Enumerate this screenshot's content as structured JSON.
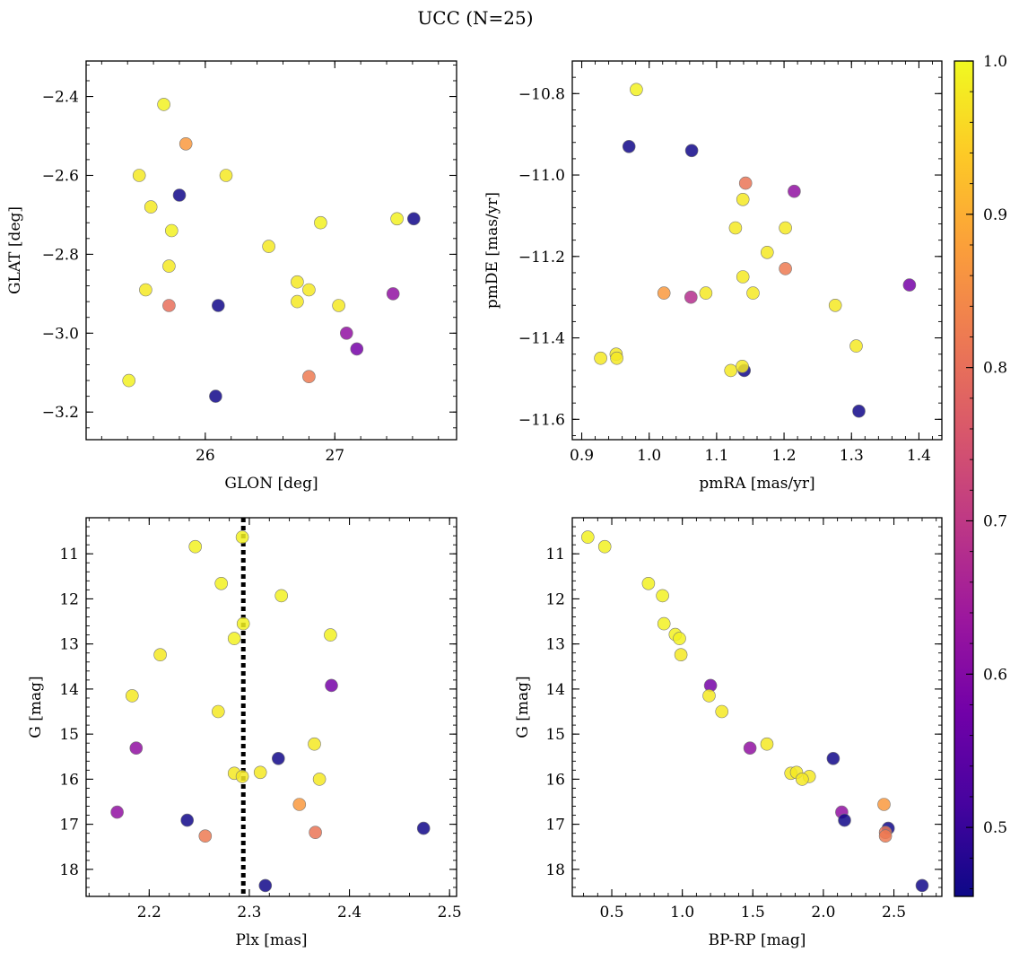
{
  "figure": {
    "title": "UCC (N=25)"
  },
  "colorbar": {
    "min": 0.455,
    "max": 1.0,
    "ticks": [
      0.5,
      0.6,
      0.7,
      0.8,
      0.9,
      1.0
    ],
    "tick_labels": [
      "0.5",
      "0.6",
      "0.7",
      "0.8",
      "0.9",
      "1.0"
    ],
    "colormap": "plasma",
    "stops": [
      "#0d0887",
      "#46039f",
      "#7201a8",
      "#9c179e",
      "#bd3786",
      "#d8576b",
      "#ed7953",
      "#fb9f3a",
      "#fdca26",
      "#f0f921"
    ]
  },
  "chart_data": [
    {
      "type": "scatter",
      "panel": "top-left",
      "xlabel": "GLON [deg]",
      "ylabel": "GLAT [deg]",
      "xlim": [
        25.08,
        27.94
      ],
      "ylim": [
        -3.27,
        -2.31
      ],
      "y_inverted": false,
      "xticks": [
        26,
        27
      ],
      "xtick_labels": [
        "26",
        "27"
      ],
      "yticks": [
        -3.2,
        -3.0,
        -2.8,
        -2.6,
        -2.4
      ],
      "ytick_labels": [
        "−3.2",
        "−3.0",
        "−2.8",
        "−2.6",
        "−2.4"
      ],
      "vline": null,
      "points": [
        {
          "x": 25.68,
          "y": -2.42,
          "c": 0.99
        },
        {
          "x": 25.85,
          "y": -2.52,
          "c": 0.87
        },
        {
          "x": 25.49,
          "y": -2.6,
          "c": 0.98
        },
        {
          "x": 26.16,
          "y": -2.6,
          "c": 0.98
        },
        {
          "x": 25.58,
          "y": -2.68,
          "c": 0.98
        },
        {
          "x": 25.8,
          "y": -2.65,
          "c": 0.46
        },
        {
          "x": 25.74,
          "y": -2.74,
          "c": 0.99
        },
        {
          "x": 26.89,
          "y": -2.72,
          "c": 0.99
        },
        {
          "x": 27.48,
          "y": -2.71,
          "c": 0.99
        },
        {
          "x": 27.61,
          "y": -2.71,
          "c": 0.46
        },
        {
          "x": 25.72,
          "y": -2.83,
          "c": 0.98
        },
        {
          "x": 26.49,
          "y": -2.78,
          "c": 0.98
        },
        {
          "x": 25.54,
          "y": -2.89,
          "c": 0.98
        },
        {
          "x": 26.71,
          "y": -2.87,
          "c": 0.98
        },
        {
          "x": 26.8,
          "y": -2.89,
          "c": 0.98
        },
        {
          "x": 26.71,
          "y": -2.92,
          "c": 0.98
        },
        {
          "x": 25.72,
          "y": -2.93,
          "c": 0.8
        },
        {
          "x": 26.1,
          "y": -2.93,
          "c": 0.46
        },
        {
          "x": 27.03,
          "y": -2.93,
          "c": 0.98
        },
        {
          "x": 27.45,
          "y": -2.9,
          "c": 0.62
        },
        {
          "x": 27.09,
          "y": -3.0,
          "c": 0.62
        },
        {
          "x": 27.17,
          "y": -3.04,
          "c": 0.58
        },
        {
          "x": 26.8,
          "y": -3.11,
          "c": 0.82
        },
        {
          "x": 25.41,
          "y": -3.12,
          "c": 0.99
        },
        {
          "x": 26.08,
          "y": -3.16,
          "c": 0.46
        }
      ]
    },
    {
      "type": "scatter",
      "panel": "top-right",
      "xlabel": "pmRA [mas/yr]",
      "ylabel": "pmDE [mas/yr]",
      "xlim": [
        0.886,
        1.434
      ],
      "ylim": [
        -11.65,
        -10.72
      ],
      "y_inverted": false,
      "xticks": [
        0.9,
        1.0,
        1.1,
        1.2,
        1.3,
        1.4
      ],
      "xtick_labels": [
        "0.9",
        "1.0",
        "1.1",
        "1.2",
        "1.3",
        "1.4"
      ],
      "yticks": [
        -11.6,
        -11.4,
        -11.2,
        -11.0,
        -10.8
      ],
      "ytick_labels": [
        "−11.6",
        "−11.4",
        "−11.2",
        "−11.0",
        "−10.8"
      ],
      "vline": null,
      "points": [
        {
          "x": 0.981,
          "y": -10.79,
          "c": 0.99
        },
        {
          "x": 0.97,
          "y": -10.93,
          "c": 0.46
        },
        {
          "x": 1.063,
          "y": -10.94,
          "c": 0.46
        },
        {
          "x": 1.143,
          "y": -11.02,
          "c": 0.81
        },
        {
          "x": 1.215,
          "y": -11.04,
          "c": 0.62
        },
        {
          "x": 1.139,
          "y": -11.06,
          "c": 0.98
        },
        {
          "x": 1.128,
          "y": -11.13,
          "c": 0.98
        },
        {
          "x": 1.202,
          "y": -11.13,
          "c": 0.98
        },
        {
          "x": 1.175,
          "y": -11.19,
          "c": 0.98
        },
        {
          "x": 1.202,
          "y": -11.23,
          "c": 0.82
        },
        {
          "x": 1.139,
          "y": -11.25,
          "c": 0.98
        },
        {
          "x": 1.386,
          "y": -11.27,
          "c": 0.58
        },
        {
          "x": 1.022,
          "y": -11.29,
          "c": 0.87
        },
        {
          "x": 1.084,
          "y": -11.29,
          "c": 0.98
        },
        {
          "x": 1.154,
          "y": -11.29,
          "c": 0.98
        },
        {
          "x": 1.062,
          "y": -11.3,
          "c": 0.68
        },
        {
          "x": 1.276,
          "y": -11.32,
          "c": 0.98
        },
        {
          "x": 1.307,
          "y": -11.42,
          "c": 0.98
        },
        {
          "x": 0.928,
          "y": -11.45,
          "c": 0.98
        },
        {
          "x": 0.951,
          "y": -11.44,
          "c": 0.98
        },
        {
          "x": 0.952,
          "y": -11.45,
          "c": 0.98
        },
        {
          "x": 1.141,
          "y": -11.48,
          "c": 0.46
        },
        {
          "x": 1.121,
          "y": -11.48,
          "c": 0.98
        },
        {
          "x": 1.138,
          "y": -11.47,
          "c": 0.98
        },
        {
          "x": 1.311,
          "y": -11.58,
          "c": 0.46
        }
      ]
    },
    {
      "type": "scatter",
      "panel": "bottom-left",
      "xlabel": "Plx [mas]",
      "ylabel": "G [mag]",
      "xlim": [
        2.137,
        2.507
      ],
      "ylim": [
        18.6,
        10.2
      ],
      "y_inverted": true,
      "xticks": [
        2.2,
        2.3,
        2.4,
        2.5
      ],
      "xtick_labels": [
        "2.2",
        "2.3",
        "2.4",
        "2.5"
      ],
      "yticks": [
        11,
        12,
        13,
        14,
        15,
        16,
        17,
        18
      ],
      "ytick_labels": [
        "11",
        "12",
        "13",
        "14",
        "15",
        "16",
        "17",
        "18"
      ],
      "vline": {
        "x": 2.294
      },
      "points": [
        {
          "x": 2.246,
          "y": 10.84,
          "c": 0.99
        },
        {
          "x": 2.293,
          "y": 10.63,
          "c": 0.99
        },
        {
          "x": 2.272,
          "y": 11.66,
          "c": 0.99
        },
        {
          "x": 2.332,
          "y": 11.93,
          "c": 0.99
        },
        {
          "x": 2.294,
          "y": 12.55,
          "c": 0.99
        },
        {
          "x": 2.285,
          "y": 12.88,
          "c": 0.99
        },
        {
          "x": 2.381,
          "y": 12.8,
          "c": 0.99
        },
        {
          "x": 2.211,
          "y": 13.24,
          "c": 0.98
        },
        {
          "x": 2.382,
          "y": 13.92,
          "c": 0.58
        },
        {
          "x": 2.183,
          "y": 14.15,
          "c": 0.98
        },
        {
          "x": 2.269,
          "y": 14.5,
          "c": 0.98
        },
        {
          "x": 2.365,
          "y": 15.22,
          "c": 0.98
        },
        {
          "x": 2.187,
          "y": 15.31,
          "c": 0.62
        },
        {
          "x": 2.329,
          "y": 15.54,
          "c": 0.46
        },
        {
          "x": 2.285,
          "y": 15.87,
          "c": 0.98
        },
        {
          "x": 2.311,
          "y": 15.85,
          "c": 0.98
        },
        {
          "x": 2.293,
          "y": 15.94,
          "c": 0.98
        },
        {
          "x": 2.37,
          "y": 16.0,
          "c": 0.98
        },
        {
          "x": 2.35,
          "y": 16.56,
          "c": 0.87
        },
        {
          "x": 2.168,
          "y": 16.73,
          "c": 0.62
        },
        {
          "x": 2.238,
          "y": 16.91,
          "c": 0.46
        },
        {
          "x": 2.474,
          "y": 17.09,
          "c": 0.46
        },
        {
          "x": 2.366,
          "y": 17.18,
          "c": 0.81
        },
        {
          "x": 2.256,
          "y": 17.26,
          "c": 0.82
        },
        {
          "x": 2.316,
          "y": 18.36,
          "c": 0.46
        }
      ]
    },
    {
      "type": "scatter",
      "panel": "bottom-right",
      "xlabel": "BP-RP [mag]",
      "ylabel": "G [mag]",
      "xlim": [
        0.22,
        2.84
      ],
      "ylim": [
        18.6,
        10.2
      ],
      "y_inverted": true,
      "xticks": [
        0.5,
        1.0,
        1.5,
        2.0,
        2.5
      ],
      "xtick_labels": [
        "0.5",
        "1.0",
        "1.5",
        "2.0",
        "2.5"
      ],
      "yticks": [
        11,
        12,
        13,
        14,
        15,
        16,
        17,
        18
      ],
      "ytick_labels": [
        "11",
        "12",
        "13",
        "14",
        "15",
        "16",
        "17",
        "18"
      ],
      "vline": null,
      "points": [
        {
          "x": 0.33,
          "y": 10.63,
          "c": 0.99
        },
        {
          "x": 0.45,
          "y": 10.84,
          "c": 0.99
        },
        {
          "x": 0.76,
          "y": 11.66,
          "c": 0.99
        },
        {
          "x": 0.86,
          "y": 11.93,
          "c": 0.99
        },
        {
          "x": 0.87,
          "y": 12.55,
          "c": 0.99
        },
        {
          "x": 0.95,
          "y": 12.79,
          "c": 0.99
        },
        {
          "x": 0.98,
          "y": 12.88,
          "c": 0.99
        },
        {
          "x": 0.99,
          "y": 13.24,
          "c": 0.98
        },
        {
          "x": 1.2,
          "y": 13.92,
          "c": 0.58
        },
        {
          "x": 1.19,
          "y": 14.15,
          "c": 0.98
        },
        {
          "x": 1.28,
          "y": 14.5,
          "c": 0.98
        },
        {
          "x": 1.6,
          "y": 15.22,
          "c": 0.98
        },
        {
          "x": 1.48,
          "y": 15.31,
          "c": 0.62
        },
        {
          "x": 2.07,
          "y": 15.54,
          "c": 0.46
        },
        {
          "x": 1.77,
          "y": 15.87,
          "c": 0.98
        },
        {
          "x": 1.81,
          "y": 15.85,
          "c": 0.98
        },
        {
          "x": 1.9,
          "y": 15.94,
          "c": 0.98
        },
        {
          "x": 1.85,
          "y": 16.0,
          "c": 0.98
        },
        {
          "x": 2.43,
          "y": 16.56,
          "c": 0.87
        },
        {
          "x": 2.13,
          "y": 16.73,
          "c": 0.62
        },
        {
          "x": 2.15,
          "y": 16.91,
          "c": 0.46
        },
        {
          "x": 2.46,
          "y": 17.09,
          "c": 0.46
        },
        {
          "x": 2.44,
          "y": 17.18,
          "c": 0.81
        },
        {
          "x": 2.44,
          "y": 17.26,
          "c": 0.82
        },
        {
          "x": 2.7,
          "y": 18.36,
          "c": 0.46
        }
      ]
    }
  ]
}
